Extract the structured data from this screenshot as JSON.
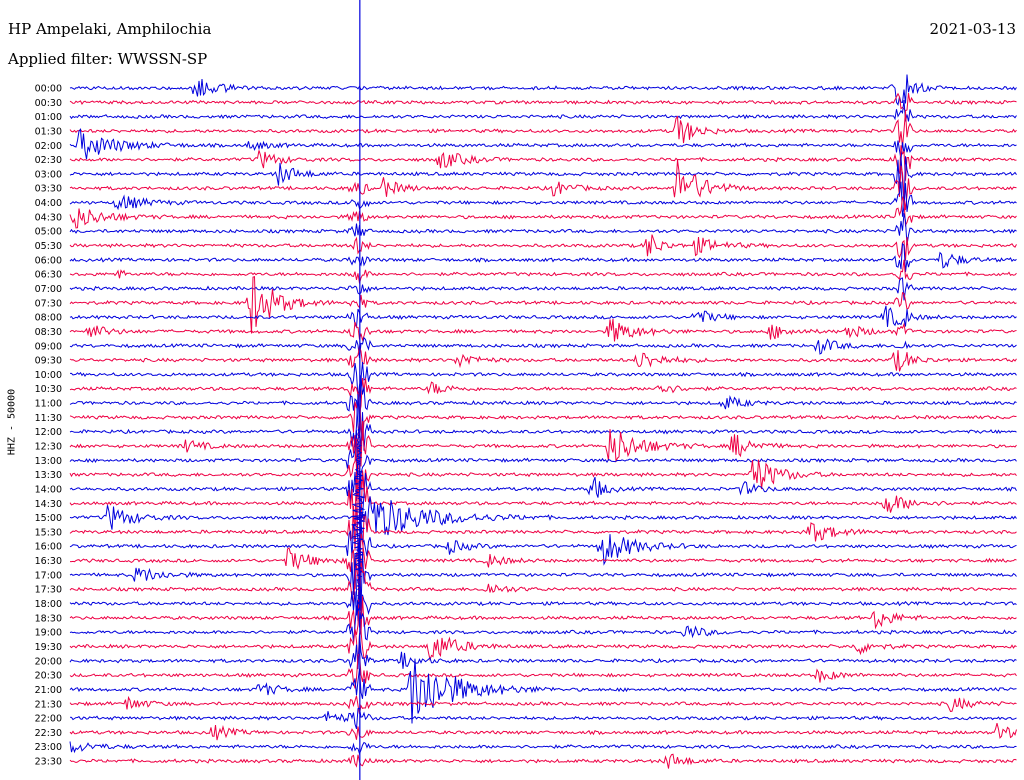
{
  "header": {
    "station": "HP Ampelaki, Amphilochia",
    "filter": "Applied filter: WWSSN-SP",
    "date": "2021-03-13"
  },
  "chart_data": {
    "type": "line",
    "title": "HP Ampelaki, Amphilochia",
    "subtitle": "Applied filter: WWSSN-SP",
    "date": "2021-03-13",
    "ylabel": "HHZ - 50000",
    "row_labels": [
      "00:00",
      "00:30",
      "01:00",
      "01:30",
      "02:00",
      "02:30",
      "03:00",
      "03:30",
      "04:00",
      "04:30",
      "05:00",
      "05:30",
      "06:00",
      "06:30",
      "07:00",
      "07:30",
      "08:00",
      "08:30",
      "09:00",
      "09:30",
      "10:00",
      "10:30",
      "11:00",
      "11:30",
      "12:00",
      "12:30",
      "13:00",
      "13:30",
      "14:00",
      "14:30",
      "15:00",
      "15:30",
      "16:00",
      "16:30",
      "17:00",
      "17:30",
      "18:00",
      "18:30",
      "19:00",
      "19:30",
      "20:00",
      "20:30",
      "21:00",
      "21:30",
      "22:00",
      "22:30",
      "23:00",
      "23:30"
    ],
    "colors": {
      "even_rows": "#0000dd",
      "odd_rows": "#ee0044"
    },
    "events": [
      {
        "t": 0.13,
        "row": 0,
        "amp": 12,
        "dur": 0.04
      },
      {
        "t": 0.87,
        "row": 0,
        "amp": 14,
        "dur": 0.03
      },
      {
        "t": 0.64,
        "row": 3,
        "amp": 18,
        "dur": 0.03
      },
      {
        "t": 0.01,
        "row": 4,
        "amp": 16,
        "dur": 0.06
      },
      {
        "t": 0.19,
        "row": 4,
        "amp": 5,
        "dur": 0.03
      },
      {
        "t": 0.2,
        "row": 5,
        "amp": 10,
        "dur": 0.03
      },
      {
        "t": 0.39,
        "row": 5,
        "amp": 10,
        "dur": 0.04
      },
      {
        "t": 0.22,
        "row": 6,
        "amp": 12,
        "dur": 0.03
      },
      {
        "t": 0.33,
        "row": 7,
        "amp": 10,
        "dur": 0.03
      },
      {
        "t": 0.51,
        "row": 7,
        "amp": 8,
        "dur": 0.03
      },
      {
        "t": 0.64,
        "row": 7,
        "amp": 30,
        "dur": 0.04
      },
      {
        "t": 0.05,
        "row": 8,
        "amp": 9,
        "dur": 0.04
      },
      {
        "t": 0.0,
        "row": 9,
        "amp": 14,
        "dur": 0.05
      },
      {
        "t": 0.61,
        "row": 11,
        "amp": 16,
        "dur": 0.02
      },
      {
        "t": 0.66,
        "row": 11,
        "amp": 9,
        "dur": 0.04
      },
      {
        "t": 0.92,
        "row": 12,
        "amp": 10,
        "dur": 0.03
      },
      {
        "t": 0.05,
        "row": 13,
        "amp": 6,
        "dur": 0.01
      },
      {
        "t": 0.19,
        "row": 15,
        "amp": 36,
        "dur": 0.04
      },
      {
        "t": 0.66,
        "row": 16,
        "amp": 9,
        "dur": 0.03
      },
      {
        "t": 0.86,
        "row": 16,
        "amp": 11,
        "dur": 0.03
      },
      {
        "t": 0.02,
        "row": 17,
        "amp": 8,
        "dur": 0.03
      },
      {
        "t": 0.57,
        "row": 17,
        "amp": 14,
        "dur": 0.04
      },
      {
        "t": 0.74,
        "row": 17,
        "amp": 8,
        "dur": 0.03
      },
      {
        "t": 0.82,
        "row": 17,
        "amp": 8,
        "dur": 0.03
      },
      {
        "t": 0.79,
        "row": 18,
        "amp": 9,
        "dur": 0.03
      },
      {
        "t": 0.41,
        "row": 19,
        "amp": 8,
        "dur": 0.03
      },
      {
        "t": 0.6,
        "row": 19,
        "amp": 10,
        "dur": 0.04
      },
      {
        "t": 0.87,
        "row": 19,
        "amp": 10,
        "dur": 0.03
      },
      {
        "t": 0.38,
        "row": 21,
        "amp": 7,
        "dur": 0.03
      },
      {
        "t": 0.62,
        "row": 21,
        "amp": 7,
        "dur": 0.03
      },
      {
        "t": 0.69,
        "row": 22,
        "amp": 8,
        "dur": 0.03
      },
      {
        "t": 0.57,
        "row": 25,
        "amp": 22,
        "dur": 0.05
      },
      {
        "t": 0.7,
        "row": 25,
        "amp": 14,
        "dur": 0.03
      },
      {
        "t": 0.12,
        "row": 25,
        "amp": 7,
        "dur": 0.03
      },
      {
        "t": 0.72,
        "row": 27,
        "amp": 22,
        "dur": 0.04
      },
      {
        "t": 0.55,
        "row": 28,
        "amp": 16,
        "dur": 0.02
      },
      {
        "t": 0.71,
        "row": 28,
        "amp": 7,
        "dur": 0.03
      },
      {
        "t": 0.86,
        "row": 29,
        "amp": 12,
        "dur": 0.04
      },
      {
        "t": 0.04,
        "row": 30,
        "amp": 14,
        "dur": 0.04
      },
      {
        "t": 0.31,
        "row": 30,
        "amp": 30,
        "dur": 0.09
      },
      {
        "t": 0.78,
        "row": 31,
        "amp": 12,
        "dur": 0.04
      },
      {
        "t": 0.56,
        "row": 32,
        "amp": 20,
        "dur": 0.05
      },
      {
        "t": 0.4,
        "row": 32,
        "amp": 7,
        "dur": 0.03
      },
      {
        "t": 0.23,
        "row": 33,
        "amp": 12,
        "dur": 0.04
      },
      {
        "t": 0.44,
        "row": 33,
        "amp": 7,
        "dur": 0.03
      },
      {
        "t": 0.07,
        "row": 34,
        "amp": 9,
        "dur": 0.04
      },
      {
        "t": 0.44,
        "row": 35,
        "amp": 7,
        "dur": 0.03
      },
      {
        "t": 0.85,
        "row": 37,
        "amp": 12,
        "dur": 0.03
      },
      {
        "t": 0.65,
        "row": 38,
        "amp": 8,
        "dur": 0.03
      },
      {
        "t": 0.38,
        "row": 39,
        "amp": 18,
        "dur": 0.04
      },
      {
        "t": 0.83,
        "row": 39,
        "amp": 8,
        "dur": 0.03
      },
      {
        "t": 0.35,
        "row": 40,
        "amp": 8,
        "dur": 0.03
      },
      {
        "t": 0.79,
        "row": 41,
        "amp": 7,
        "dur": 0.03
      },
      {
        "t": 0.2,
        "row": 42,
        "amp": 8,
        "dur": 0.03
      },
      {
        "t": 0.36,
        "row": 42,
        "amp": 40,
        "dur": 0.07
      },
      {
        "t": 0.06,
        "row": 43,
        "amp": 7,
        "dur": 0.03
      },
      {
        "t": 0.93,
        "row": 43,
        "amp": 8,
        "dur": 0.03
      },
      {
        "t": 0.27,
        "row": 44,
        "amp": 7,
        "dur": 0.03
      },
      {
        "t": 0.15,
        "row": 45,
        "amp": 8,
        "dur": 0.03
      },
      {
        "t": 0.98,
        "row": 45,
        "amp": 12,
        "dur": 0.02
      },
      {
        "t": 0.0,
        "row": 46,
        "amp": 6,
        "dur": 0.04
      },
      {
        "t": 0.63,
        "row": 47,
        "amp": 9,
        "dur": 0.03
      }
    ],
    "major_event": {
      "t": 0.305,
      "start_row": 7,
      "peak_row": 30,
      "end_row": 47
    },
    "column_spike": {
      "t": 0.88,
      "top_row": 0,
      "bottom_row": 19
    }
  }
}
